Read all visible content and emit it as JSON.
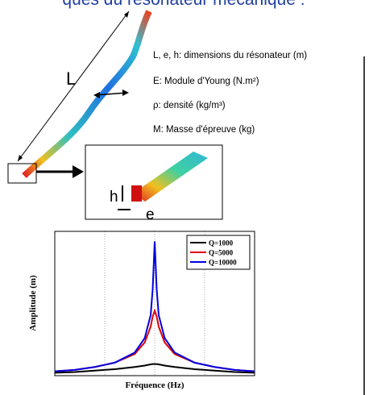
{
  "header": {
    "title": "ques du résonateur mécanique :"
  },
  "labels": {
    "length": "L",
    "height": "h",
    "width": "e"
  },
  "definitions": [
    "L, e, h: dimensions du résonateur (m)",
    "E: Module d'Young (N.m²)",
    "ρ: densité (kg/m³)",
    "M: Masse d'épreuve (kg)"
  ],
  "chart_data": {
    "type": "line",
    "xlabel": "Fréquence (Hz)",
    "ylabel": "Amplitude (m)",
    "x": [
      0,
      1,
      2,
      3,
      4,
      4.5,
      4.8,
      4.9,
      5,
      5.1,
      5.2,
      5.5,
      6,
      7,
      8,
      9,
      10
    ],
    "xlim": [
      0,
      10
    ],
    "ylim": [
      0,
      10
    ],
    "legend": "upper right",
    "series": [
      {
        "name": "Q=1000",
        "color": "#000000",
        "values": [
          0.2,
          0.25,
          0.35,
          0.45,
          0.6,
          0.7,
          0.78,
          0.8,
          0.8,
          0.8,
          0.78,
          0.7,
          0.6,
          0.45,
          0.35,
          0.25,
          0.2
        ]
      },
      {
        "name": "Q=5000",
        "color": "#e00000",
        "values": [
          0.3,
          0.4,
          0.6,
          0.9,
          1.5,
          2.3,
          3.4,
          4.1,
          4.5,
          4.1,
          3.4,
          2.3,
          1.5,
          0.9,
          0.6,
          0.4,
          0.3
        ]
      },
      {
        "name": "Q=10000",
        "color": "#0000e0",
        "values": [
          0.3,
          0.4,
          0.6,
          0.9,
          1.6,
          2.6,
          4.2,
          6.0,
          9.3,
          6.0,
          4.2,
          2.6,
          1.6,
          0.9,
          0.6,
          0.4,
          0.3
        ]
      }
    ]
  }
}
